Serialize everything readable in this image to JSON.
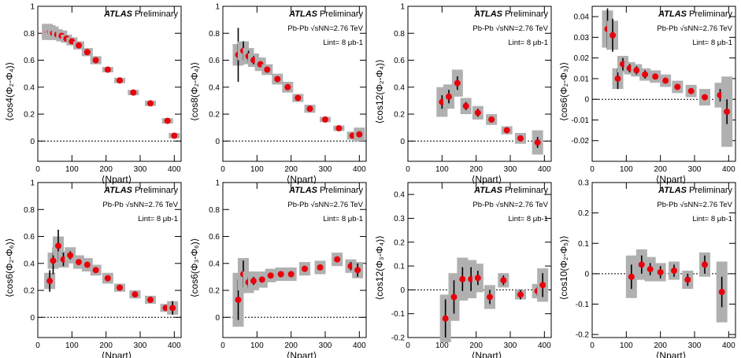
{
  "chart_data": [
    {
      "type": "scatter",
      "ylabel": "⟨cos4(Φ₂-Φ₄)⟩",
      "xlabel": "⟨Npart⟩",
      "annotations": [
        "ATLAS",
        "Preliminary"
      ],
      "x": [
        28,
        36,
        45,
        57,
        70,
        84,
        100,
        120,
        145,
        170,
        205,
        240,
        280,
        330,
        380,
        400
      ],
      "values": [
        0.81,
        0.81,
        0.8,
        0.79,
        0.78,
        0.76,
        0.74,
        0.71,
        0.66,
        0.6,
        0.53,
        0.45,
        0.36,
        0.28,
        0.15,
        0.04
      ],
      "errors": [
        0.01,
        0.01,
        0.01,
        0.01,
        0.01,
        0.01,
        0.01,
        0.01,
        0.01,
        0.01,
        0.01,
        0.01,
        0.01,
        0.01,
        0.01,
        0.01
      ],
      "systematics": [
        0.06,
        0.05,
        0.05,
        0.04,
        0.04,
        0.03,
        0.03,
        0.03,
        0.03,
        0.03,
        0.02,
        0.02,
        0.02,
        0.02,
        0.02,
        0.02
      ],
      "xlim": [
        0,
        420
      ],
      "xticks": [
        0,
        100,
        200,
        300,
        400
      ],
      "ylim": [
        -0.15,
        1
      ],
      "yticks": [
        0,
        0.2,
        0.4,
        0.6,
        0.8,
        1
      ],
      "reference_line": 0
    },
    {
      "type": "scatter",
      "ylabel": "⟨cos8(Φ₂-Φ₄)⟩",
      "xlabel": "⟨Npart⟩",
      "annotations": [
        "ATLAS",
        "Preliminary",
        "Pb-Pb √sNN=2.76 TeV",
        "Lint= 8 μb-1"
      ],
      "x": [
        45,
        60,
        75,
        90,
        110,
        130,
        160,
        190,
        220,
        255,
        300,
        340,
        380,
        400
      ],
      "values": [
        0.64,
        0.67,
        0.63,
        0.6,
        0.57,
        0.53,
        0.46,
        0.4,
        0.32,
        0.24,
        0.16,
        0.095,
        0.04,
        0.05
      ],
      "errors": [
        0.2,
        0.07,
        0.04,
        0.03,
        0.02,
        0.02,
        0.01,
        0.01,
        0.01,
        0.01,
        0.01,
        0.01,
        0.01,
        0.02
      ],
      "systematics": [
        0.08,
        0.07,
        0.06,
        0.05,
        0.05,
        0.04,
        0.04,
        0.04,
        0.03,
        0.03,
        0.02,
        0.02,
        0.03,
        0.05
      ],
      "xlim": [
        0,
        420
      ],
      "xticks": [
        0,
        100,
        200,
        300,
        400
      ],
      "ylim": [
        -0.15,
        1
      ],
      "yticks": [
        0,
        0.2,
        0.4,
        0.6,
        0.8,
        1
      ],
      "reference_line": 0
    },
    {
      "type": "scatter",
      "ylabel": "⟨cos12(Φ₂-Φ₄)⟩",
      "xlabel": "⟨Npart⟩",
      "annotations": [
        "ATLAS",
        "Preliminary",
        "Pb-Pb √sNN=2.76 TeV",
        "Lint= 8 μb-1"
      ],
      "x": [
        100,
        120,
        145,
        170,
        205,
        245,
        290,
        330,
        380
      ],
      "values": [
        0.29,
        0.33,
        0.43,
        0.26,
        0.21,
        0.16,
        0.08,
        0.02,
        -0.01
      ],
      "errors": [
        0.05,
        0.05,
        0.05,
        0.03,
        0.03,
        0.02,
        0.02,
        0.02,
        0.04
      ],
      "systematics": [
        0.11,
        0.09,
        0.1,
        0.06,
        0.05,
        0.04,
        0.03,
        0.04,
        0.09
      ],
      "xlim": [
        0,
        420
      ],
      "xticks": [
        0,
        100,
        200,
        300,
        400
      ],
      "ylim": [
        -0.15,
        1
      ],
      "yticks": [
        0,
        0.2,
        0.4,
        0.6,
        0.8,
        1
      ],
      "reference_line": 0
    },
    {
      "type": "scatter",
      "ylabel": "⟨cos6(Φ₂-Φ₃)⟩",
      "xlabel": "⟨Npart⟩",
      "annotations": [
        "ATLAS",
        "Preliminary",
        "Pb-Pb √sNN=2.76 TeV",
        "Lint= 8 μb-1"
      ],
      "x": [
        45,
        60,
        75,
        90,
        110,
        130,
        155,
        185,
        215,
        250,
        290,
        330,
        375,
        395
      ],
      "values": [
        0.034,
        0.031,
        0.01,
        0.017,
        0.015,
        0.014,
        0.012,
        0.011,
        0.009,
        0.006,
        0.004,
        0.001,
        0.002,
        -0.006
      ],
      "errors": [
        0.01,
        0.008,
        0.005,
        0.003,
        0.002,
        0.002,
        0.002,
        0.001,
        0.001,
        0.001,
        0.001,
        0.001,
        0.003,
        0.006
      ],
      "systematics": [
        0.009,
        0.007,
        0.005,
        0.004,
        0.003,
        0.003,
        0.003,
        0.003,
        0.003,
        0.003,
        0.003,
        0.004,
        0.006,
        0.017
      ],
      "xlim": [
        0,
        420
      ],
      "xticks": [
        0,
        100,
        200,
        300,
        400
      ],
      "ylim": [
        -0.03,
        0.045
      ],
      "yticks": [
        -0.02,
        -0.01,
        0,
        0.01,
        0.02,
        0.03,
        0.04
      ],
      "reference_line": 0
    },
    {
      "type": "scatter",
      "ylabel": "⟨cos6(Φ₂-Φ₆)⟩",
      "xlabel": "⟨Npart⟩",
      "annotations": [
        "ATLAS",
        "Preliminary",
        "Pb-Pb √sNN=2.76 TeV",
        "Lint= 8 μb-1"
      ],
      "x": [
        35,
        45,
        60,
        75,
        95,
        120,
        145,
        170,
        205,
        240,
        285,
        330,
        375,
        395
      ],
      "values": [
        0.27,
        0.42,
        0.53,
        0.43,
        0.46,
        0.41,
        0.39,
        0.35,
        0.29,
        0.22,
        0.17,
        0.13,
        0.07,
        0.07
      ],
      "errors": [
        0.08,
        0.1,
        0.12,
        0.05,
        0.03,
        0.02,
        0.02,
        0.02,
        0.01,
        0.01,
        0.01,
        0.01,
        0.02,
        0.05
      ],
      "systematics": [
        0.06,
        0.06,
        0.07,
        0.06,
        0.06,
        0.05,
        0.05,
        0.04,
        0.04,
        0.03,
        0.03,
        0.03,
        0.03,
        0.05
      ],
      "xlim": [
        0,
        420
      ],
      "xticks": [
        0,
        100,
        200,
        300,
        400
      ],
      "ylim": [
        -0.15,
        1
      ],
      "yticks": [
        0,
        0.2,
        0.4,
        0.6,
        0.8,
        1
      ],
      "reference_line": 0
    },
    {
      "type": "scatter",
      "ylabel": "⟨cos6(Φ₃-Φ₆)⟩",
      "xlabel": "⟨Npart⟩",
      "annotations": [
        "ATLAS",
        "Preliminary",
        "Pb-Pb √sNN=2.76 TeV",
        "Lint= 8 μb-1"
      ],
      "x": [
        45,
        60,
        75,
        90,
        115,
        140,
        170,
        200,
        240,
        285,
        335,
        375,
        395
      ],
      "values": [
        0.13,
        0.32,
        0.26,
        0.27,
        0.28,
        0.31,
        0.32,
        0.32,
        0.36,
        0.37,
        0.43,
        0.38,
        0.35
      ],
      "errors": [
        0.15,
        0.1,
        0.04,
        0.03,
        0.02,
        0.02,
        0.02,
        0.02,
        0.02,
        0.02,
        0.02,
        0.03,
        0.05
      ],
      "systematics": [
        0.2,
        0.12,
        0.08,
        0.07,
        0.06,
        0.05,
        0.05,
        0.05,
        0.05,
        0.05,
        0.05,
        0.05,
        0.06
      ],
      "xlim": [
        0,
        420
      ],
      "xticks": [
        0,
        100,
        200,
        300,
        400
      ],
      "ylim": [
        -0.15,
        1
      ],
      "yticks": [
        0,
        0.2,
        0.4,
        0.6,
        0.8,
        1
      ],
      "reference_line": 0
    },
    {
      "type": "scatter",
      "ylabel": "⟨cos12(Φ₃-Φ₄)⟩",
      "xlabel": "⟨Npart⟩",
      "annotations": [
        "ATLAS",
        "Preliminary",
        "Pb-Pb √sNN=2.76 TeV",
        "Lint= 8 μb-1"
      ],
      "x": [
        110,
        135,
        160,
        185,
        205,
        240,
        280,
        330,
        380,
        395
      ],
      "values": [
        -0.12,
        -0.03,
        0.045,
        0.045,
        0.05,
        -0.03,
        0.04,
        -0.02,
        -0.005,
        0.02
      ],
      "errors": [
        0.08,
        0.07,
        0.05,
        0.05,
        0.03,
        0.03,
        0.02,
        0.02,
        0.02,
        0.05
      ],
      "systematics": [
        0.1,
        0.1,
        0.09,
        0.08,
        0.06,
        0.05,
        0.03,
        0.02,
        0.03,
        0.07
      ],
      "xlim": [
        0,
        420
      ],
      "xticks": [
        0,
        100,
        200,
        300,
        400
      ],
      "ylim": [
        -0.2,
        0.45
      ],
      "yticks": [
        -0.2,
        -0.1,
        0,
        0.1,
        0.2,
        0.3,
        0.4
      ],
      "reference_line": 0
    },
    {
      "type": "scatter",
      "ylabel": "⟨cos10(Φ₂-Φ₅)⟩",
      "xlabel": "⟨Npart⟩",
      "annotations": [
        "ATLAS",
        "Preliminary",
        "Pb-Pb √sNN=2.76 TeV",
        "Lint= 8 μb-1"
      ],
      "x": [
        115,
        145,
        170,
        200,
        240,
        280,
        330,
        380
      ],
      "values": [
        -0.01,
        0.03,
        0.015,
        0.005,
        0.01,
        -0.02,
        0.03,
        -0.06
      ],
      "errors": [
        0.04,
        0.03,
        0.02,
        0.02,
        0.02,
        0.02,
        0.03,
        0.05
      ],
      "systematics": [
        0.07,
        0.05,
        0.04,
        0.03,
        0.03,
        0.03,
        0.04,
        0.1
      ],
      "xlim": [
        0,
        420
      ],
      "xticks": [
        0,
        100,
        200,
        300,
        400
      ],
      "ylim": [
        -0.21,
        0.3
      ],
      "yticks": [
        -0.2,
        -0.1,
        0,
        0.1,
        0.2,
        0.3
      ],
      "reference_line": 0
    }
  ]
}
